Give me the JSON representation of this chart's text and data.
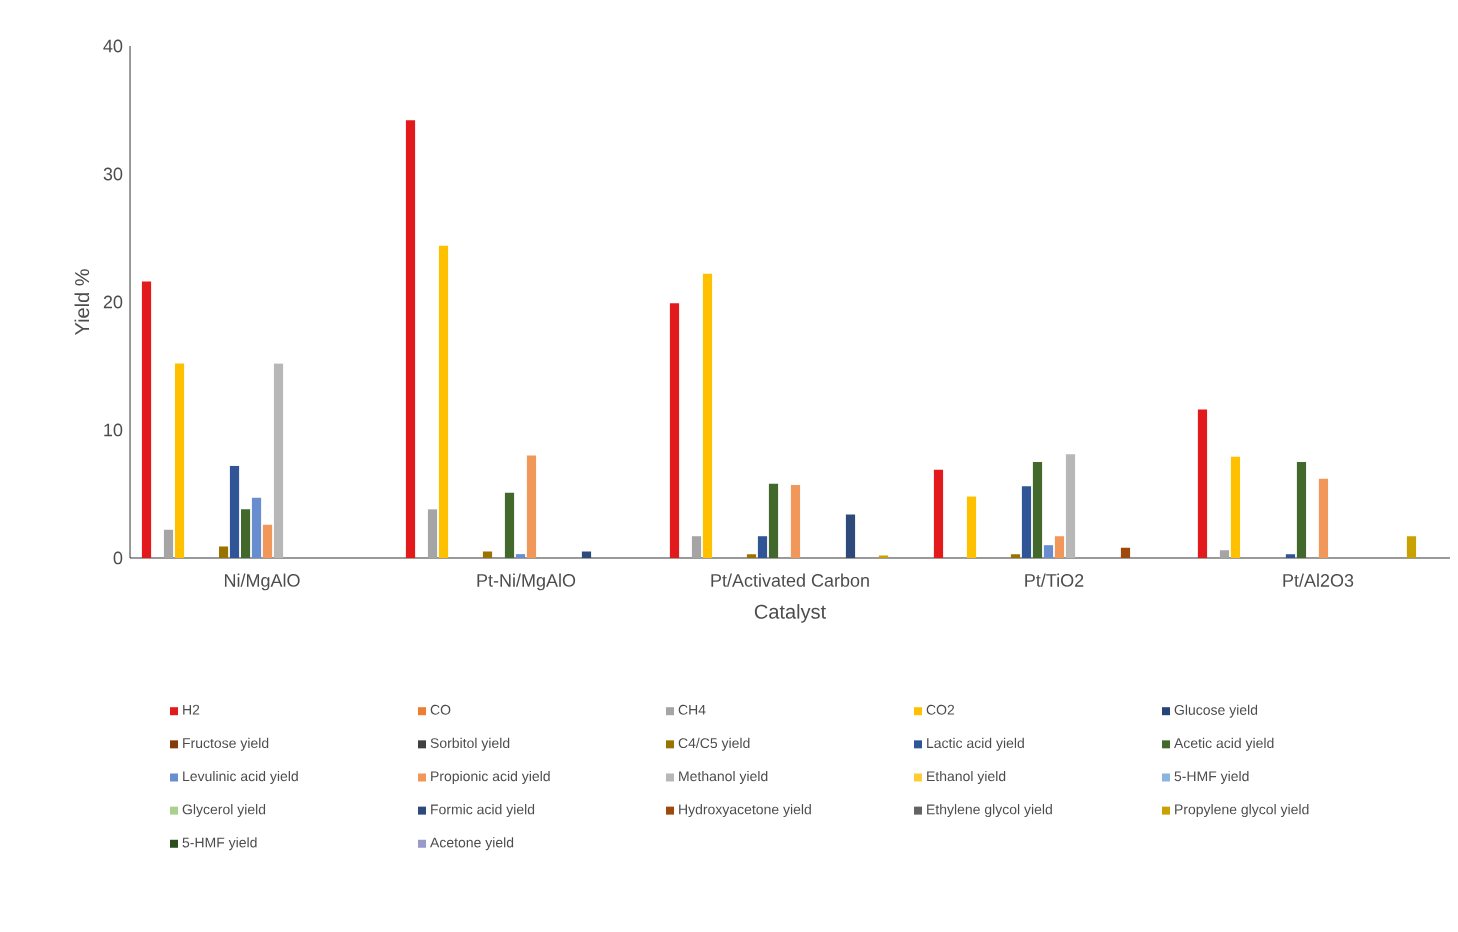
{
  "chart_data": {
    "type": "bar",
    "xlabel": "Catalyst",
    "ylabel": "Yield %",
    "categories": [
      "Ni/MgAlO",
      "Pt-Ni/MgAlO",
      "Pt/Activated Carbon",
      "Pt/TiO2",
      "Pt/Al2O3"
    ],
    "ylim": [
      0,
      40
    ],
    "yticks": [
      0,
      10,
      20,
      30,
      40
    ],
    "legend": "bottom",
    "series": [
      {
        "name": "H2",
        "color": "#e31a1c",
        "values": [
          21.6,
          34.2,
          19.9,
          6.9,
          11.6
        ]
      },
      {
        "name": "CO",
        "color": "#ed7d31",
        "values": [
          0,
          0,
          0,
          0,
          0
        ]
      },
      {
        "name": "CH4",
        "color": "#a5a5a5",
        "values": [
          2.2,
          3.8,
          1.7,
          0,
          0.6
        ]
      },
      {
        "name": "CO2",
        "color": "#ffc000",
        "values": [
          15.2,
          24.4,
          22.2,
          4.8,
          7.9
        ]
      },
      {
        "name": "Glucose yield",
        "color": "#264478",
        "values": [
          0,
          0,
          0,
          0,
          0
        ]
      },
      {
        "name": "Fructose yield",
        "color": "#843c0c",
        "values": [
          0,
          0,
          0,
          0,
          0
        ]
      },
      {
        "name": "Sorbitol yield",
        "color": "#404040",
        "values": [
          0,
          0,
          0,
          0,
          0
        ]
      },
      {
        "name": "C4/C5 yield",
        "color": "#997300",
        "values": [
          0.9,
          0.5,
          0.3,
          0.3,
          0
        ]
      },
      {
        "name": "Lactic acid yield",
        "color": "#2f5597",
        "values": [
          7.2,
          0,
          1.7,
          5.6,
          0.3
        ]
      },
      {
        "name": "Acetic acid yield",
        "color": "#43682b",
        "values": [
          3.8,
          5.1,
          5.8,
          7.5,
          7.5
        ]
      },
      {
        "name": "Levulinic acid yield",
        "color": "#698ed0",
        "values": [
          4.7,
          0.3,
          0,
          1.0,
          0
        ]
      },
      {
        "name": "Propionic acid yield",
        "color": "#f1975a",
        "values": [
          2.6,
          8.0,
          5.7,
          1.7,
          6.2
        ]
      },
      {
        "name": "Methanol yield",
        "color": "#b7b7b7",
        "values": [
          15.2,
          0,
          0,
          8.1,
          0
        ]
      },
      {
        "name": "Ethanol yield",
        "color": "#ffcd33",
        "values": [
          0,
          0,
          0,
          0,
          0
        ]
      },
      {
        "name": "5-HMF yield",
        "color": "#8cb4e0",
        "values": [
          0,
          0,
          0,
          0,
          0
        ]
      },
      {
        "name": "Glycerol yield",
        "color": "#a9d18e",
        "values": [
          0,
          0,
          0,
          0,
          0
        ]
      },
      {
        "name": "Formic acid yield",
        "color": "#2e4a7a",
        "values": [
          0,
          0.5,
          3.4,
          0,
          0
        ]
      },
      {
        "name": "Hydroxyacetone yield",
        "color": "#9e480e",
        "values": [
          0,
          0,
          0,
          0.8,
          0
        ]
      },
      {
        "name": "Ethylene glycol yield",
        "color": "#636363",
        "values": [
          0,
          0,
          0,
          0,
          0
        ]
      },
      {
        "name": "Propylene glycol yield",
        "color": "#c9a100",
        "values": [
          0,
          0,
          0.2,
          0,
          1.7
        ]
      },
      {
        "name": "5-HMF yield",
        "color": "#2c4d1c",
        "values": [
          0,
          0,
          0,
          0,
          0
        ]
      },
      {
        "name": "Acetone yield",
        "color": "#9999cc",
        "values": [
          0,
          0,
          0,
          0,
          0
        ]
      }
    ]
  }
}
